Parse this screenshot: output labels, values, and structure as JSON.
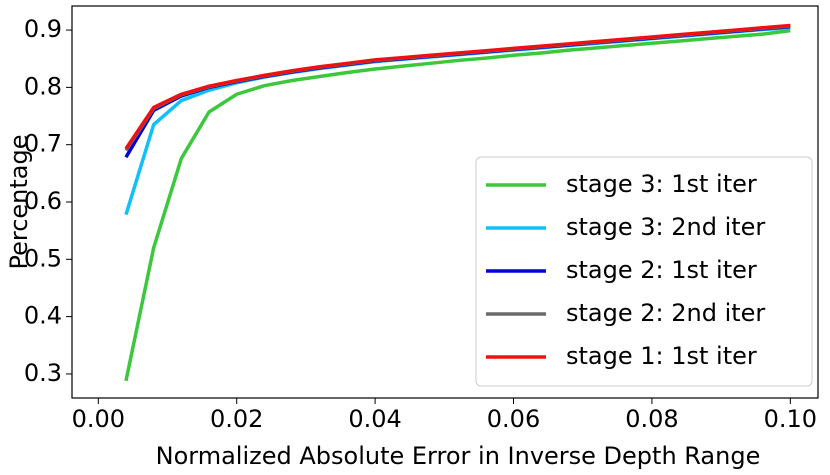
{
  "chart_data": {
    "type": "line",
    "xlabel": "Normalized Absolute Error in Inverse Depth Range",
    "ylabel": "Percentage",
    "x": [
      0.004,
      0.008,
      0.012,
      0.016,
      0.02,
      0.024,
      0.028,
      0.032,
      0.036,
      0.04,
      0.044,
      0.048,
      0.052,
      0.056,
      0.06,
      0.064,
      0.068,
      0.072,
      0.076,
      0.08,
      0.084,
      0.088,
      0.092,
      0.096,
      0.1
    ],
    "series": [
      {
        "name": "stage 3: 1st iter",
        "color": "#3cc83c",
        "values": [
          0.288,
          0.52,
          0.676,
          0.757,
          0.788,
          0.803,
          0.812,
          0.819,
          0.826,
          0.832,
          0.837,
          0.842,
          0.847,
          0.851,
          0.856,
          0.86,
          0.865,
          0.869,
          0.873,
          0.877,
          0.881,
          0.885,
          0.889,
          0.893,
          0.899
        ]
      },
      {
        "name": "stage 3: 2nd iter",
        "color": "#10c0f8",
        "values": [
          0.578,
          0.735,
          0.777,
          0.795,
          0.808,
          0.818,
          0.826,
          0.833,
          0.839,
          0.845,
          0.849,
          0.853,
          0.857,
          0.861,
          0.865,
          0.869,
          0.873,
          0.877,
          0.881,
          0.885,
          0.889,
          0.893,
          0.897,
          0.901,
          0.904
        ]
      },
      {
        "name": "stage 2: 1st iter",
        "color": "#0000dd",
        "values": [
          0.678,
          0.76,
          0.785,
          0.8,
          0.81,
          0.819,
          0.827,
          0.834,
          0.84,
          0.846,
          0.85,
          0.854,
          0.858,
          0.862,
          0.866,
          0.87,
          0.874,
          0.878,
          0.882,
          0.886,
          0.89,
          0.894,
          0.898,
          0.902,
          0.906
        ]
      },
      {
        "name": "stage 2: 2nd iter",
        "color": "#6a6a6a",
        "values": [
          0.69,
          0.763,
          0.787,
          0.801,
          0.811,
          0.82,
          0.828,
          0.835,
          0.841,
          0.847,
          0.851,
          0.855,
          0.859,
          0.863,
          0.867,
          0.871,
          0.875,
          0.879,
          0.883,
          0.887,
          0.891,
          0.895,
          0.899,
          0.903,
          0.907
        ]
      },
      {
        "name": "stage 1: 1st iter",
        "color": "#ee1111",
        "values": [
          0.693,
          0.765,
          0.788,
          0.802,
          0.812,
          0.821,
          0.829,
          0.836,
          0.842,
          0.848,
          0.852,
          0.856,
          0.86,
          0.864,
          0.868,
          0.872,
          0.876,
          0.88,
          0.884,
          0.888,
          0.892,
          0.896,
          0.9,
          0.904,
          0.908
        ]
      }
    ],
    "xlim": [
      -0.0038,
      0.104
    ],
    "ylim": [
      0.258,
      0.942
    ],
    "xticks": [
      {
        "value": 0,
        "label": "0.00"
      },
      0.02,
      0.04,
      0.06,
      0.08,
      {
        "value": 0.1,
        "label": "0.10"
      }
    ],
    "yticks": [
      0.3,
      0.4,
      0.5,
      0.6,
      0.7,
      0.8,
      0.9
    ],
    "legend": "lower right"
  }
}
